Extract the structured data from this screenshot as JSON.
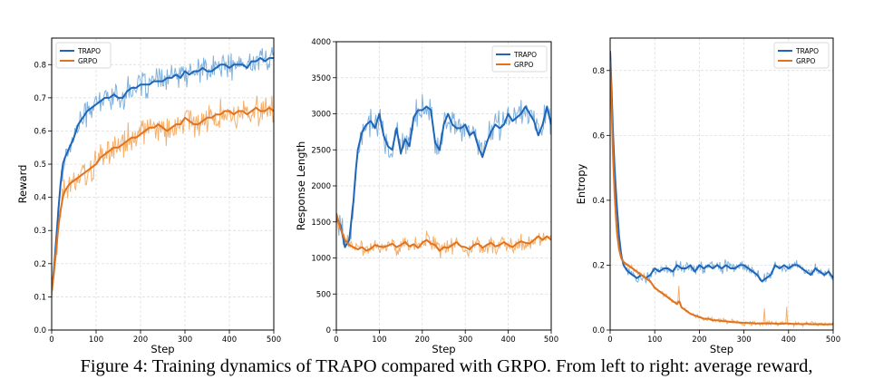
{
  "caption": "Figure 4: Training dynamics of TRAPO compared with GRPO. From left to right: average reward,",
  "colors": {
    "trapo": "#1f66b8",
    "trapo_raw": "#7fb1dd",
    "grpo": "#e0731f",
    "grpo_raw": "#f5b06c",
    "grid": "#d9d9d9"
  },
  "chart_data": [
    {
      "type": "line",
      "title": "",
      "xlabel": "Step",
      "ylabel": "Reward",
      "xlim": [
        0,
        500
      ],
      "ylim": [
        0,
        0.88
      ],
      "xticks": [
        0,
        100,
        200,
        300,
        400,
        500
      ],
      "xtick_labels": [
        "0",
        "100",
        "200",
        "300",
        "400",
        "500"
      ],
      "yticks": [
        0,
        0.1,
        0.2,
        0.3,
        0.4,
        0.5,
        0.6,
        0.7,
        0.8
      ],
      "ytick_labels": [
        "0.0",
        "0.1",
        "0.2",
        "0.3",
        "0.4",
        "0.5",
        "0.6",
        "0.7",
        "0.8"
      ],
      "legend_position": "top-left",
      "series": [
        {
          "name": "TRAPO",
          "noise": 0.03,
          "x": [
            0,
            5,
            10,
            15,
            20,
            25,
            30,
            40,
            50,
            60,
            70,
            80,
            90,
            100,
            110,
            120,
            130,
            140,
            150,
            160,
            170,
            180,
            190,
            200,
            210,
            220,
            230,
            240,
            250,
            260,
            270,
            280,
            290,
            300,
            310,
            320,
            330,
            340,
            350,
            360,
            370,
            380,
            390,
            400,
            410,
            420,
            430,
            440,
            450,
            460,
            470,
            480,
            490,
            500
          ],
          "values": [
            0.12,
            0.18,
            0.27,
            0.36,
            0.44,
            0.5,
            0.52,
            0.55,
            0.58,
            0.62,
            0.64,
            0.66,
            0.67,
            0.68,
            0.69,
            0.7,
            0.7,
            0.71,
            0.7,
            0.7,
            0.72,
            0.73,
            0.73,
            0.74,
            0.74,
            0.74,
            0.75,
            0.75,
            0.75,
            0.76,
            0.76,
            0.77,
            0.76,
            0.78,
            0.77,
            0.78,
            0.78,
            0.79,
            0.78,
            0.78,
            0.79,
            0.8,
            0.8,
            0.79,
            0.8,
            0.8,
            0.8,
            0.79,
            0.81,
            0.81,
            0.82,
            0.81,
            0.82,
            0.82
          ]
        },
        {
          "name": "GRPO",
          "noise": 0.035,
          "x": [
            0,
            5,
            10,
            15,
            20,
            25,
            30,
            40,
            50,
            60,
            70,
            80,
            90,
            100,
            110,
            120,
            130,
            140,
            150,
            160,
            170,
            180,
            190,
            200,
            210,
            220,
            230,
            240,
            250,
            260,
            270,
            280,
            290,
            300,
            310,
            320,
            330,
            340,
            350,
            360,
            370,
            380,
            390,
            400,
            410,
            420,
            430,
            440,
            450,
            460,
            470,
            480,
            490,
            500
          ],
          "values": [
            0.12,
            0.17,
            0.24,
            0.31,
            0.36,
            0.4,
            0.42,
            0.44,
            0.45,
            0.46,
            0.47,
            0.48,
            0.49,
            0.5,
            0.52,
            0.53,
            0.54,
            0.55,
            0.55,
            0.56,
            0.57,
            0.58,
            0.58,
            0.59,
            0.6,
            0.61,
            0.61,
            0.62,
            0.61,
            0.6,
            0.61,
            0.62,
            0.62,
            0.64,
            0.63,
            0.62,
            0.62,
            0.63,
            0.64,
            0.64,
            0.65,
            0.65,
            0.66,
            0.66,
            0.65,
            0.66,
            0.66,
            0.65,
            0.66,
            0.67,
            0.66,
            0.66,
            0.67,
            0.66
          ]
        }
      ]
    },
    {
      "type": "line",
      "title": "",
      "xlabel": "Step",
      "ylabel": "Response Length",
      "xlim": [
        0,
        500
      ],
      "ylim": [
        0,
        4000
      ],
      "xticks": [
        0,
        100,
        200,
        300,
        400,
        500
      ],
      "xtick_labels": [
        "0",
        "100",
        "200",
        "300",
        "400",
        "500"
      ],
      "yticks": [
        0,
        500,
        1000,
        1500,
        2000,
        2500,
        3000,
        3500,
        4000
      ],
      "ytick_labels": [
        "0",
        "500",
        "1000",
        "1500",
        "2000",
        "2500",
        "3000",
        "3500",
        "4000"
      ],
      "legend_position": "top-right",
      "series": [
        {
          "name": "TRAPO",
          "noise": 160,
          "x": [
            0,
            10,
            20,
            30,
            40,
            45,
            50,
            60,
            70,
            80,
            90,
            100,
            110,
            120,
            130,
            140,
            150,
            160,
            170,
            180,
            190,
            200,
            210,
            220,
            230,
            240,
            250,
            260,
            270,
            280,
            290,
            300,
            310,
            320,
            330,
            340,
            350,
            360,
            370,
            380,
            390,
            400,
            410,
            420,
            430,
            440,
            450,
            460,
            470,
            480,
            490,
            500
          ],
          "values": [
            1550,
            1450,
            1150,
            1250,
            1800,
            2200,
            2500,
            2750,
            2850,
            2900,
            2800,
            3000,
            2700,
            2550,
            2500,
            2800,
            2450,
            2650,
            2550,
            2950,
            3050,
            3050,
            3100,
            3050,
            2600,
            2500,
            2850,
            3000,
            2850,
            2800,
            2800,
            2850,
            2700,
            2750,
            2550,
            2400,
            2600,
            2750,
            2850,
            2800,
            2850,
            3000,
            2900,
            2950,
            3000,
            3100,
            3000,
            2900,
            2700,
            2850,
            3100,
            2850
          ]
        },
        {
          "name": "GRPO",
          "noise": 90,
          "x": [
            0,
            10,
            20,
            30,
            40,
            50,
            60,
            70,
            80,
            90,
            100,
            110,
            120,
            130,
            140,
            150,
            160,
            170,
            180,
            190,
            200,
            210,
            220,
            230,
            240,
            250,
            260,
            270,
            280,
            290,
            300,
            310,
            320,
            330,
            340,
            350,
            360,
            370,
            380,
            390,
            400,
            410,
            420,
            430,
            440,
            450,
            460,
            470,
            480,
            490,
            500
          ],
          "values": [
            1620,
            1400,
            1250,
            1180,
            1150,
            1120,
            1150,
            1100,
            1130,
            1180,
            1160,
            1150,
            1170,
            1200,
            1150,
            1180,
            1220,
            1160,
            1190,
            1140,
            1210,
            1250,
            1200,
            1180,
            1100,
            1150,
            1140,
            1180,
            1220,
            1160,
            1150,
            1120,
            1180,
            1200,
            1140,
            1180,
            1210,
            1160,
            1180,
            1220,
            1180,
            1150,
            1200,
            1230,
            1210,
            1200,
            1250,
            1300,
            1250,
            1300,
            1250
          ]
        }
      ]
    },
    {
      "type": "line",
      "title": "",
      "xlabel": "Step",
      "ylabel": "Entropy",
      "xlim": [
        0,
        500
      ],
      "ylim": [
        0,
        0.9
      ],
      "xticks": [
        0,
        100,
        200,
        300,
        400,
        500
      ],
      "xtick_labels": [
        "0",
        "100",
        "200",
        "300",
        "400",
        "500"
      ],
      "yticks": [
        0,
        0.2,
        0.4,
        0.6,
        0.8
      ],
      "ytick_labels": [
        "0.0",
        "0.2",
        "0.4",
        "0.6",
        "0.8"
      ],
      "legend_position": "top-right",
      "series": [
        {
          "name": "TRAPO",
          "noise": 0.014,
          "x": [
            0,
            3,
            6,
            10,
            15,
            20,
            25,
            30,
            40,
            50,
            60,
            70,
            80,
            90,
            100,
            110,
            120,
            130,
            140,
            150,
            160,
            170,
            180,
            190,
            200,
            210,
            220,
            230,
            240,
            250,
            260,
            270,
            280,
            290,
            300,
            310,
            320,
            330,
            340,
            350,
            360,
            370,
            380,
            390,
            400,
            410,
            420,
            430,
            440,
            450,
            460,
            470,
            480,
            490,
            500
          ],
          "values": [
            0.86,
            0.75,
            0.62,
            0.5,
            0.38,
            0.29,
            0.23,
            0.2,
            0.18,
            0.17,
            0.16,
            0.17,
            0.16,
            0.17,
            0.19,
            0.18,
            0.19,
            0.19,
            0.18,
            0.2,
            0.19,
            0.19,
            0.2,
            0.18,
            0.2,
            0.19,
            0.2,
            0.19,
            0.2,
            0.19,
            0.2,
            0.19,
            0.19,
            0.2,
            0.2,
            0.19,
            0.18,
            0.17,
            0.15,
            0.16,
            0.17,
            0.2,
            0.19,
            0.2,
            0.19,
            0.2,
            0.2,
            0.19,
            0.18,
            0.17,
            0.19,
            0.18,
            0.17,
            0.18,
            0.16
          ]
        },
        {
          "name": "GRPO",
          "noise": 0.006,
          "x": [
            0,
            3,
            6,
            10,
            15,
            20,
            25,
            30,
            40,
            50,
            60,
            70,
            80,
            90,
            100,
            110,
            120,
            130,
            140,
            150,
            155,
            160,
            170,
            180,
            190,
            200,
            210,
            220,
            230,
            240,
            250,
            260,
            270,
            280,
            290,
            300,
            310,
            320,
            330,
            340,
            350,
            360,
            370,
            380,
            390,
            400,
            410,
            420,
            430,
            440,
            450,
            460,
            470,
            480,
            490,
            500
          ],
          "values": [
            0.83,
            0.7,
            0.55,
            0.42,
            0.3,
            0.25,
            0.22,
            0.21,
            0.2,
            0.19,
            0.18,
            0.17,
            0.16,
            0.15,
            0.13,
            0.12,
            0.11,
            0.1,
            0.09,
            0.08,
            0.09,
            0.07,
            0.06,
            0.05,
            0.045,
            0.04,
            0.035,
            0.035,
            0.03,
            0.03,
            0.028,
            0.027,
            0.025,
            0.024,
            0.023,
            0.022,
            0.022,
            0.021,
            0.02,
            0.02,
            0.021,
            0.02,
            0.02,
            0.019,
            0.02,
            0.02,
            0.019,
            0.019,
            0.018,
            0.019,
            0.018,
            0.018,
            0.018,
            0.017,
            0.018,
            0.018
          ]
        }
      ]
    }
  ]
}
